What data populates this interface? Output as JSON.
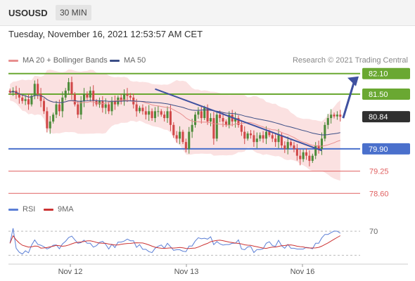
{
  "header": {
    "symbol": "USOUSD",
    "interval": "30 MIN",
    "datetime": "Tuesday, November 16, 2021 12:53:57 AM CET"
  },
  "legend": {
    "ma20_label": "MA 20 + Bollinger Bands",
    "ma50_label": "MA 50",
    "research": "Research © 2021 Trading Central",
    "rsi_label": "RSI",
    "ma9_label": "9MA"
  },
  "colors": {
    "green_level": "#6aa832",
    "blue_level": "#4a70cc",
    "red_level": "#e06060",
    "current_price": "#2f2f2f",
    "trend_line": "#3f51a0",
    "bollinger_fill": "#f9d7d7",
    "ma20": "#e88f8f",
    "ma50": "#3b4e86",
    "rsi": "#5b7fd6",
    "ma9": "#cc3333"
  },
  "chart_data": {
    "type": "candlestick",
    "symbol": "USOUSD",
    "timeframe": "30 MIN",
    "x_ticks": [
      "Nov 12",
      "Nov 13",
      "Nov 16"
    ],
    "ylim": [
      78.4,
      82.3
    ],
    "levels": [
      {
        "value": 82.1,
        "label": "82.10",
        "kind": "resistance",
        "color": "#6aa832"
      },
      {
        "value": 81.5,
        "label": "81.50",
        "kind": "resistance",
        "color": "#6aa832"
      },
      {
        "value": 80.84,
        "label": "80.84",
        "kind": "current",
        "color": "#2f2f2f"
      },
      {
        "value": 79.9,
        "label": "79.90",
        "kind": "pivot",
        "color": "#4a70cc"
      },
      {
        "value": 79.25,
        "label": "79.25",
        "kind": "support",
        "color": "#e06060"
      },
      {
        "value": 78.6,
        "label": "78.60",
        "kind": "support",
        "color": "#e06060"
      }
    ],
    "close": [
      81.55,
      81.6,
      81.5,
      81.4,
      81.3,
      81.35,
      81.2,
      81.45,
      81.8,
      81.5,
      81.3,
      81.0,
      80.5,
      80.7,
      80.9,
      81.2,
      81.0,
      81.4,
      81.6,
      81.85,
      81.5,
      81.2,
      80.9,
      81.3,
      81.5,
      81.4,
      81.6,
      81.3,
      81.2,
      81.3,
      81.1,
      81.2,
      81.0,
      81.3,
      81.2,
      81.4,
      81.3,
      81.5,
      81.45,
      81.4,
      81.2,
      81.0,
      81.1,
      81.0,
      80.9,
      81.0,
      80.8,
      81.0,
      81.0,
      80.9,
      80.8,
      81.0,
      80.6,
      80.3,
      80.2,
      80.4,
      80.1,
      79.9,
      80.4,
      80.6,
      80.9,
      81.0,
      80.8,
      81.1,
      80.7,
      80.8,
      80.2,
      80.9,
      80.8,
      80.7,
      80.6,
      80.9,
      80.7,
      80.8,
      80.6,
      80.4,
      80.2,
      80.35,
      80.3,
      80.1,
      80.2,
      80.3,
      80.2,
      80.4,
      80.3,
      80.2,
      80.1,
      80.3,
      80.0,
      79.9,
      80.1,
      80.0,
      79.9,
      79.7,
      79.6,
      79.8,
      79.7,
      79.55,
      79.7,
      80.0,
      79.9,
      80.2,
      80.6,
      80.8,
      80.9,
      80.85,
      80.9,
      80.84
    ],
    "rsi_reference": 70,
    "trend_line": {
      "from_index": 47,
      "from_value": 81.65,
      "to_index": 101,
      "to_value": 79.85
    }
  }
}
